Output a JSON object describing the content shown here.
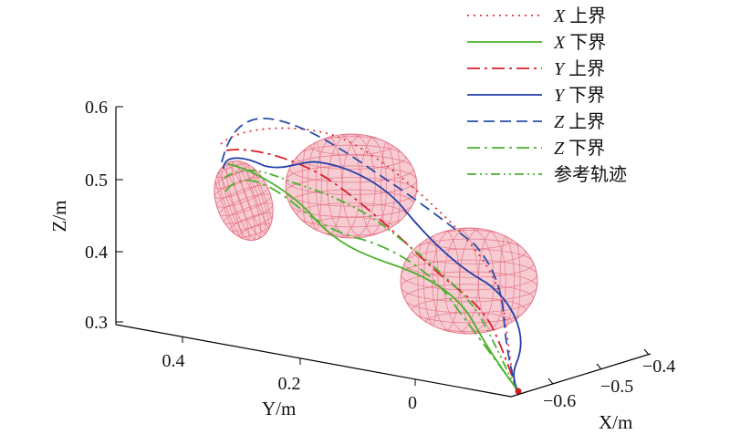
{
  "chart_data": {
    "type": "line",
    "title": "",
    "dimensions": "3d",
    "axes": {
      "x": {
        "label": "X/m",
        "ticks": [
          "−0.6",
          "−0.5",
          "−0.4"
        ]
      },
      "y": {
        "label": "Y/m",
        "ticks": [
          "0.4",
          "0.2",
          "0"
        ]
      },
      "z": {
        "label": "Z/m",
        "ticks": [
          "0.3",
          "0.4",
          "0.5",
          "0.6"
        ],
        "range": [
          0.3,
          0.6
        ]
      }
    },
    "grid": false,
    "legend_position": "top-right",
    "legend": [
      {
        "label_var": "X",
        "label_text": " 上界",
        "color": "#e0303a",
        "style": "dotted"
      },
      {
        "label_var": "X",
        "label_text": " 下界",
        "color": "#4caf2a",
        "style": "solid"
      },
      {
        "label_var": "Y",
        "label_text": " 上界",
        "color": "#d81f2c",
        "style": "dashdot"
      },
      {
        "label_var": "Y",
        "label_text": " 下界",
        "color": "#1f3fa8",
        "style": "solid"
      },
      {
        "label_var": "Z",
        "label_text": " 上界",
        "color": "#2a4ea6",
        "style": "dashed"
      },
      {
        "label_var": "Z",
        "label_text": " 下界",
        "color": "#49b12f",
        "style": "dashdot"
      },
      {
        "label_var": "",
        "label_text": "参考轨迹",
        "color": "#49b12f",
        "style": "dashdotdot"
      }
    ],
    "obstacles": [
      {
        "shape": "ellipsoid",
        "color": "#e46a7d",
        "fill_opacity": 0.35
      },
      {
        "shape": "ellipsoid",
        "color": "#e46a7d",
        "fill_opacity": 0.35
      },
      {
        "shape": "ellipsoid",
        "color": "#e46a7d",
        "fill_opacity": 0.35
      }
    ],
    "end_point": {
      "color": "#cc1f1f"
    }
  }
}
